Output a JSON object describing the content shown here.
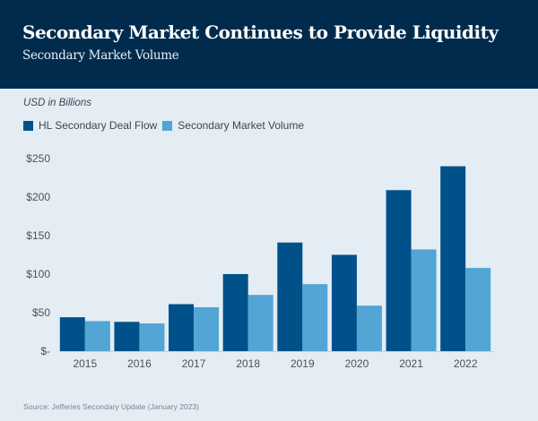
{
  "header": {
    "title": "Secondary Market Continues to Provide Liquidity",
    "subtitle": "Secondary Market Volume"
  },
  "units_label": "USD in Billions",
  "source": "Source: Jefferies Secondary Update (January 2023)",
  "colors": {
    "header_bg": "#002b4d",
    "background": "#e4edf4",
    "hl_deal_flow": "#00508a",
    "secondary_market_volume": "#52a5d4"
  },
  "chart_data": {
    "type": "bar",
    "title": "Secondary Market Volume",
    "xlabel": "",
    "ylabel": "USD in Billions",
    "categories": [
      "2015",
      "2016",
      "2017",
      "2018",
      "2019",
      "2020",
      "2021",
      "2022"
    ],
    "series": [
      {
        "name": "HL Secondary Deal Flow",
        "color": "#00508a",
        "values": [
          44,
          38,
          61,
          100,
          141,
          125,
          209,
          240
        ]
      },
      {
        "name": "Secondary Market Volume",
        "color": "#52a5d4",
        "values": [
          39,
          36,
          57,
          73,
          87,
          59,
          132,
          108
        ]
      }
    ],
    "ylim": [
      0,
      250
    ],
    "yticks": [
      0,
      50,
      100,
      150,
      200,
      250
    ],
    "ytick_labels": [
      "$-",
      "$50",
      "$100",
      "$150",
      "$200",
      "$250"
    ],
    "grid": false,
    "legend_position": "top-left"
  }
}
